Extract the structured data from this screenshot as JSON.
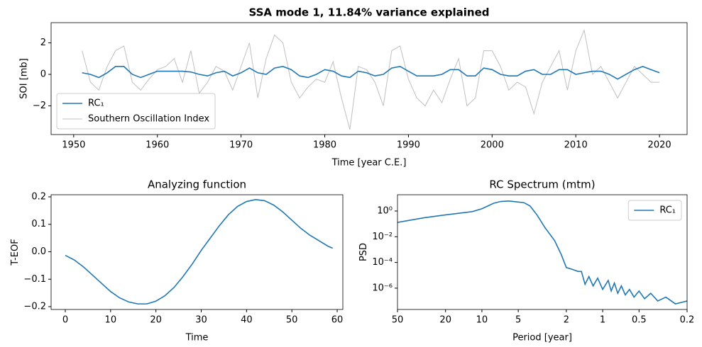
{
  "chart_data": [
    {
      "type": "line",
      "title": "SSA  mode 1, 11.84% variance explained",
      "xlabel": "Time [year C.E.]",
      "ylabel": "SOI [mb]",
      "x": [
        1951,
        1952,
        1953,
        1954,
        1955,
        1956,
        1957,
        1958,
        1959,
        1960,
        1961,
        1962,
        1963,
        1964,
        1965,
        1966,
        1967,
        1968,
        1969,
        1970,
        1971,
        1972,
        1973,
        1974,
        1975,
        1976,
        1977,
        1978,
        1979,
        1980,
        1981,
        1982,
        1983,
        1984,
        1985,
        1986,
        1987,
        1988,
        1989,
        1990,
        1991,
        1992,
        1993,
        1994,
        1995,
        1996,
        1997,
        1998,
        1999,
        2000,
        2001,
        2002,
        2003,
        2004,
        2005,
        2006,
        2007,
        2008,
        2009,
        2010,
        2011,
        2012,
        2013,
        2014,
        2015,
        2016,
        2017,
        2018,
        2019,
        2020
      ],
      "series": [
        {
          "name": "RC₁",
          "color": "#1f77b4",
          "values": [
            0.1,
            0.0,
            -0.2,
            0.1,
            0.5,
            0.5,
            0.0,
            -0.2,
            0.0,
            0.2,
            0.2,
            0.2,
            0.2,
            0.15,
            0.0,
            -0.1,
            0.1,
            0.2,
            -0.1,
            0.1,
            0.4,
            0.1,
            0.0,
            0.4,
            0.5,
            0.3,
            -0.1,
            -0.2,
            0.0,
            0.3,
            0.2,
            -0.1,
            -0.2,
            0.2,
            0.1,
            -0.1,
            0.0,
            0.4,
            0.5,
            0.2,
            -0.1,
            -0.1,
            -0.1,
            0.0,
            0.3,
            0.3,
            -0.1,
            -0.1,
            0.4,
            0.3,
            0.0,
            -0.1,
            -0.1,
            0.2,
            0.3,
            0.0,
            0.0,
            0.3,
            0.3,
            0.0,
            0.1,
            0.2,
            0.2,
            0.0,
            -0.3,
            0.0,
            0.3,
            0.5,
            0.3,
            0.1
          ]
        },
        {
          "name": "Southern Oscillation Index",
          "color": "#bfbfbf",
          "values": [
            1.5,
            -0.5,
            -1.0,
            0.5,
            1.5,
            1.8,
            -0.5,
            -1.0,
            -0.3,
            0.3,
            0.5,
            1.0,
            -0.5,
            1.5,
            -1.2,
            -0.5,
            0.5,
            0.2,
            -1.0,
            0.5,
            2.0,
            -1.5,
            1.0,
            2.5,
            2.0,
            -0.5,
            -1.5,
            -0.8,
            -0.3,
            -0.5,
            0.8,
            -1.5,
            -3.5,
            0.5,
            0.3,
            -0.5,
            -2.0,
            1.5,
            1.8,
            -0.3,
            -1.5,
            -2.0,
            -1.0,
            -1.8,
            -0.3,
            1.0,
            -2.0,
            -1.5,
            1.5,
            1.5,
            0.5,
            -1.0,
            -0.5,
            -0.8,
            -2.5,
            -0.5,
            0.5,
            1.5,
            -1.0,
            1.5,
            2.8,
            0.0,
            0.5,
            -0.5,
            -1.5,
            -0.5,
            0.5,
            0.0,
            -0.5,
            -0.5
          ]
        }
      ],
      "xlim": [
        1947.3,
        2023.3
      ],
      "xticks": [
        1950,
        1960,
        1970,
        1980,
        1990,
        2000,
        2010,
        2020
      ],
      "ylim": [
        -3.82,
        3.28
      ],
      "yticks": [
        {
          "value": -2,
          "label": "−2"
        },
        0,
        2
      ],
      "legend": "lower left"
    },
    {
      "type": "line",
      "title": "Analyzing function",
      "xlabel": "Time",
      "ylabel": "T-EOF",
      "color": "#1f77b4",
      "x": [
        0,
        2,
        4,
        6,
        8,
        10,
        12,
        14,
        16,
        18,
        20,
        22,
        24,
        26,
        28,
        30,
        32,
        34,
        36,
        38,
        40,
        42,
        44,
        46,
        48,
        50,
        52,
        54,
        56,
        58,
        59
      ],
      "values": [
        -0.013,
        -0.03,
        -0.055,
        -0.085,
        -0.115,
        -0.145,
        -0.168,
        -0.183,
        -0.19,
        -0.19,
        -0.18,
        -0.16,
        -0.13,
        -0.09,
        -0.045,
        0.005,
        0.05,
        0.095,
        0.135,
        0.165,
        0.183,
        0.19,
        0.186,
        0.17,
        0.145,
        0.115,
        0.085,
        0.06,
        0.04,
        0.02,
        0.013
      ],
      "xlim": [
        -3.13,
        61.25
      ],
      "xticks": [
        0,
        10,
        20,
        30,
        40,
        50,
        60
      ],
      "ylim": [
        -0.2103,
        0.2077
      ],
      "yticks": [
        {
          "value": -0.2,
          "label": "−0.2"
        },
        {
          "value": -0.1,
          "label": "−0.1"
        },
        {
          "value": 0,
          "label": "0.0"
        },
        0.1,
        0.2
      ]
    },
    {
      "type": "line",
      "title": "RC Spectrum (mtm)",
      "xlabel": "Period [year]",
      "ylabel": "PSD",
      "xscale": "log",
      "yscale": "log",
      "x": [
        50,
        30,
        20,
        12,
        10,
        8,
        7,
        6,
        5,
        4.5,
        4,
        3.5,
        3,
        2.5,
        2.2,
        2,
        1.8,
        1.6,
        1.5,
        1.4,
        1.3,
        1.2,
        1.1,
        1.0,
        0.9,
        0.85,
        0.8,
        0.75,
        0.7,
        0.65,
        0.6,
        0.55,
        0.5,
        0.45,
        0.4,
        0.35,
        0.3,
        0.25,
        0.2
      ],
      "series": [
        {
          "name": "RC₁",
          "color": "#1f77b4",
          "values": [
            0.13,
            0.3,
            0.5,
            0.9,
            1.5,
            4,
            5.5,
            6,
            5,
            4.5,
            2.5,
            0.5,
            0.05,
            0.005,
            0.0004,
            4e-05,
            3e-05,
            2e-05,
            2e-05,
            2e-06,
            8e-06,
            1.5e-06,
            6e-06,
            8e-07,
            4e-06,
            6e-07,
            2.5e-06,
            4e-07,
            1.5e-06,
            3e-07,
            8e-07,
            2e-07,
            6e-07,
            1.5e-07,
            4e-07,
            1e-07,
            2e-07,
            6e-08,
            1e-07
          ]
        }
      ],
      "xlim": [
        50,
        0.2
      ],
      "xticks": [
        50,
        20,
        10,
        5,
        2,
        1,
        0.5,
        0.2
      ],
      "ylim": [
        2.2e-08,
        18.4
      ],
      "yticks": [
        {
          "value": 1,
          "label": "10⁰"
        },
        {
          "value": 0.01,
          "label": "10⁻²"
        },
        {
          "value": 0.0001,
          "label": "10⁻⁴"
        },
        {
          "value": 1e-06,
          "label": "10⁻⁶"
        }
      ],
      "legend": "upper right"
    }
  ]
}
